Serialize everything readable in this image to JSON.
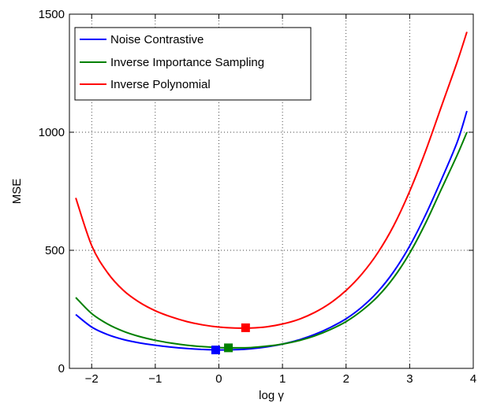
{
  "chart_data": {
    "type": "line",
    "title": "",
    "xlabel": "log γ",
    "ylabel": "MSE",
    "xlim": [
      -2.35,
      4
    ],
    "ylim": [
      0,
      1500
    ],
    "xticks": [
      -2,
      -1,
      0,
      1,
      2,
      3,
      4
    ],
    "yticks": [
      0,
      500,
      1000,
      1500
    ],
    "xtick_labels": [
      "−2",
      "−1",
      "0",
      "1",
      "2",
      "3",
      "4"
    ],
    "ytick_labels": [
      "0",
      "500",
      "1000",
      "1500"
    ],
    "grid": true,
    "legend_position": "top-left",
    "series": [
      {
        "name": "Noise Contrastive",
        "color": "#0000ff",
        "x": [
          -2.25,
          -2.0,
          -1.75,
          -1.5,
          -1.25,
          -1.0,
          -0.75,
          -0.5,
          -0.25,
          0.0,
          0.25,
          0.5,
          0.75,
          1.0,
          1.25,
          1.5,
          1.75,
          2.0,
          2.25,
          2.5,
          2.75,
          3.0,
          3.25,
          3.5,
          3.75,
          3.9
        ],
        "y": [
          228,
          175,
          143,
          122,
          108,
          98,
          90,
          84,
          80,
          78,
          79,
          83,
          91,
          103,
          120,
          143,
          173,
          210,
          260,
          325,
          410,
          518,
          650,
          800,
          960,
          1090
        ]
      },
      {
        "name": "Inverse Importance Sampling",
        "color": "#008000",
        "x": [
          -2.25,
          -2.0,
          -1.75,
          -1.5,
          -1.25,
          -1.0,
          -0.75,
          -0.5,
          -0.25,
          0.0,
          0.25,
          0.5,
          0.75,
          1.0,
          1.25,
          1.5,
          1.75,
          2.0,
          2.25,
          2.5,
          2.75,
          3.0,
          3.25,
          3.5,
          3.75,
          3.9
        ],
        "y": [
          300,
          232,
          188,
          157,
          135,
          119,
          107,
          98,
          92,
          88,
          87,
          88,
          94,
          103,
          117,
          137,
          164,
          198,
          245,
          305,
          385,
          488,
          615,
          760,
          905,
          1000
        ]
      },
      {
        "name": "Inverse Polynomial",
        "color": "#ff0000",
        "x": [
          -2.25,
          -2.0,
          -1.75,
          -1.5,
          -1.25,
          -1.0,
          -0.75,
          -0.5,
          -0.25,
          0.0,
          0.25,
          0.5,
          0.75,
          1.0,
          1.25,
          1.5,
          1.75,
          2.0,
          2.25,
          2.5,
          2.75,
          3.0,
          3.25,
          3.5,
          3.75,
          3.9
        ],
        "y": [
          722,
          520,
          405,
          330,
          280,
          244,
          218,
          198,
          184,
          175,
          171,
          171,
          176,
          188,
          207,
          236,
          276,
          330,
          400,
          490,
          605,
          750,
          920,
          1110,
          1300,
          1425
        ]
      }
    ],
    "markers": [
      {
        "series": "Noise Contrastive",
        "x": -0.05,
        "y": 78,
        "color": "#0000ff"
      },
      {
        "series": "Inverse Importance Sampling",
        "x": 0.15,
        "y": 87,
        "color": "#008000"
      },
      {
        "series": "Inverse Polynomial",
        "x": 0.42,
        "y": 172,
        "color": "#ff0000"
      }
    ]
  }
}
